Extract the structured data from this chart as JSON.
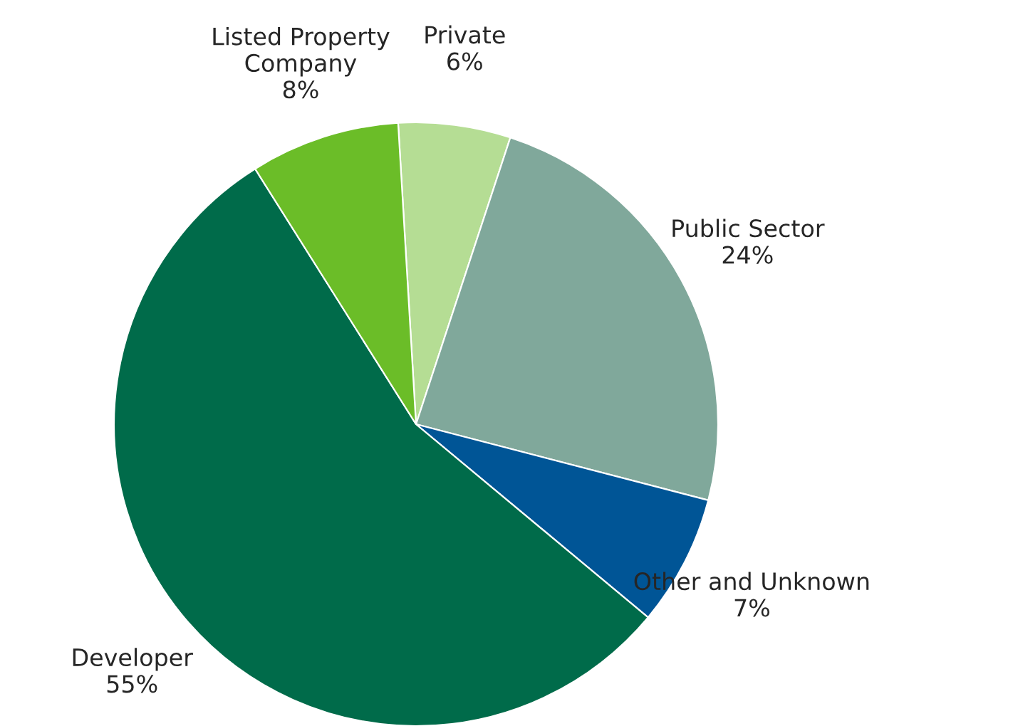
{
  "chart_data": {
    "type": "pie",
    "categories": [
      "Private",
      "Public Sector",
      "Other and Unknown",
      "Developer",
      "Listed Property\nCompany"
    ],
    "values": [
      6,
      24,
      7,
      55,
      8
    ],
    "value_labels": [
      "6%",
      "24%",
      "7%",
      "55%",
      "8%"
    ],
    "colors": [
      "#b5dd94",
      "#80a89b",
      "#005596",
      "#006b4a",
      "#6bbd28"
    ]
  }
}
